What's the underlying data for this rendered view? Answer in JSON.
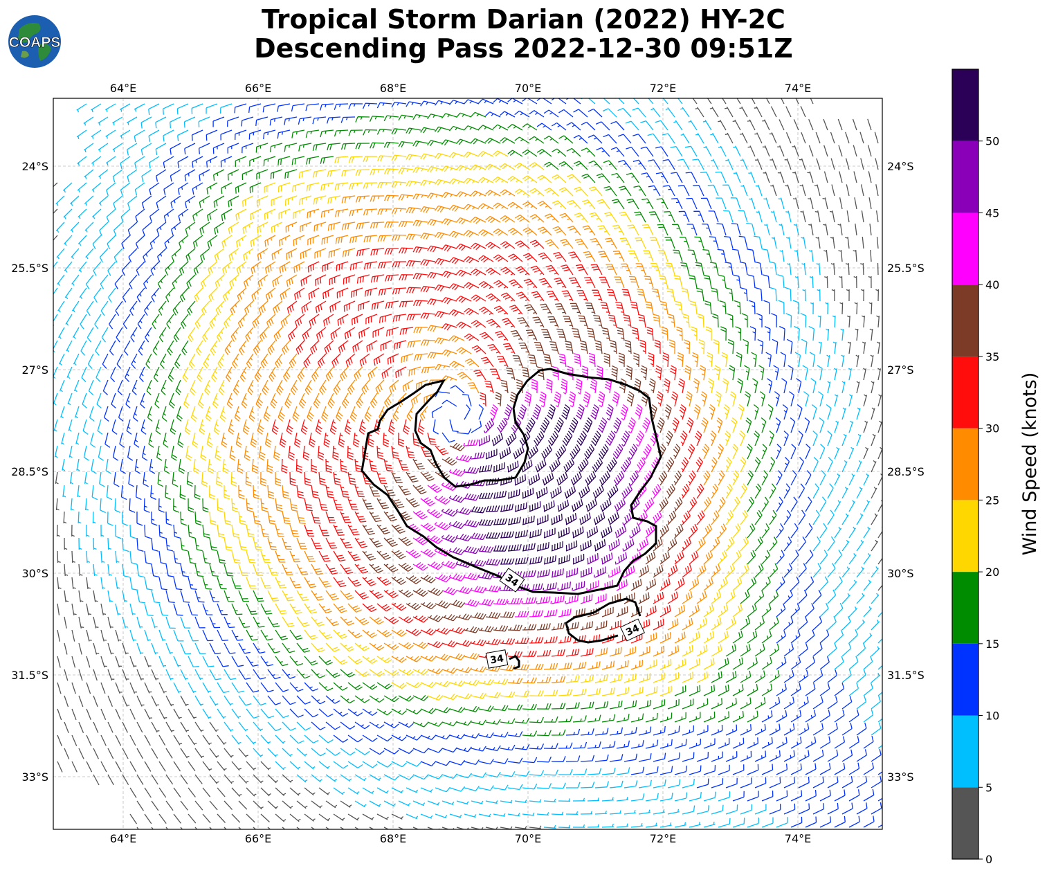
{
  "header": {
    "title_line1": "Tropical Storm Darian (2022) HY-2C",
    "title_line2": "Descending Pass 2022-12-30 09:51Z",
    "logo_text": "COAPS"
  },
  "map": {
    "lon_ticks": [
      "64°E",
      "66°E",
      "68°E",
      "70°E",
      "72°E",
      "74°E"
    ],
    "lat_ticks": [
      "24°S",
      "25.5°S",
      "27°S",
      "28.5°S",
      "30°S",
      "31.5°S",
      "33°S"
    ],
    "lon_range": [
      62.95,
      75.25
    ],
    "lat_range": [
      -34.8,
      -22.0
    ],
    "storm_center": {
      "lon": 68.9,
      "lat": -27.7
    },
    "contour_label": "34"
  },
  "colorbar": {
    "title": "Wind Speed (knots)",
    "ticks": [
      "0",
      "5",
      "10",
      "15",
      "20",
      "25",
      "30",
      "35",
      "40",
      "45",
      "50"
    ],
    "bins": [
      {
        "min": 0,
        "max": 5,
        "color": "#555555"
      },
      {
        "min": 5,
        "max": 10,
        "color": "#00bfff"
      },
      {
        "min": 10,
        "max": 15,
        "color": "#0033ff"
      },
      {
        "min": 15,
        "max": 20,
        "color": "#008c00"
      },
      {
        "min": 20,
        "max": 25,
        "color": "#ffd700"
      },
      {
        "min": 25,
        "max": 30,
        "color": "#ff8c00"
      },
      {
        "min": 30,
        "max": 35,
        "color": "#ff0d0d"
      },
      {
        "min": 35,
        "max": 40,
        "color": "#7b3b27"
      },
      {
        "min": 40,
        "max": 45,
        "color": "#ff00ff"
      },
      {
        "min": 45,
        "max": 50,
        "color": "#8a00b8"
      },
      {
        "min": 50,
        "max": 55,
        "color": "#2b0057"
      }
    ]
  }
}
